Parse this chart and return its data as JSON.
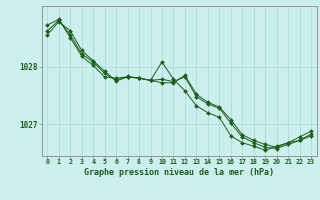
{
  "title": "Graphe pression niveau de la mer (hPa)",
  "background_color": "#cceeed",
  "grid_color": "#aadddd",
  "line_color": "#1a5e1a",
  "marker_color": "#1a5e1a",
  "xlim": [
    -0.5,
    23.5
  ],
  "ylim": [
    1026.45,
    1029.05
  ],
  "yticks": [
    1027,
    1028
  ],
  "xticks": [
    0,
    1,
    2,
    3,
    4,
    5,
    6,
    7,
    8,
    9,
    10,
    11,
    12,
    13,
    14,
    15,
    16,
    17,
    18,
    19,
    20,
    21,
    22,
    23
  ],
  "series": [
    [
      1028.55,
      1028.78,
      1028.62,
      1028.28,
      1028.1,
      1027.92,
      1027.75,
      1027.82,
      1027.8,
      1027.76,
      1027.72,
      1027.72,
      1027.85,
      1027.52,
      1027.38,
      1027.3,
      1027.08,
      1026.82,
      1026.72,
      1026.65,
      1026.6,
      1026.68,
      1026.72,
      1026.8
    ],
    [
      1028.72,
      1028.82,
      1028.5,
      1028.18,
      1028.02,
      1027.82,
      1027.8,
      1027.82,
      1027.8,
      1027.76,
      1028.08,
      1027.78,
      1027.58,
      1027.32,
      1027.2,
      1027.12,
      1026.8,
      1026.68,
      1026.62,
      1026.55,
      1026.62,
      1026.68,
      1026.78,
      1026.88
    ],
    [
      1028.62,
      1028.8,
      1028.55,
      1028.22,
      1028.08,
      1027.88,
      1027.76,
      1027.83,
      1027.8,
      1027.76,
      1027.78,
      1027.74,
      1027.82,
      1027.48,
      1027.35,
      1027.28,
      1027.02,
      1026.78,
      1026.68,
      1026.6,
      1026.58,
      1026.65,
      1026.72,
      1026.83
    ]
  ]
}
